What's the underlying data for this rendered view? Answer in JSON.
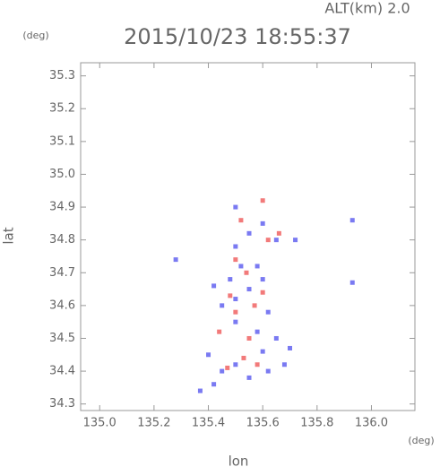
{
  "chart_data": {
    "type": "scatter",
    "title": "2015/10/23 18:55:37",
    "annotation": "ALT(km) 2.0",
    "x_label": "lon",
    "y_label": "lat",
    "x_unit": "(deg)",
    "y_unit": "(deg)",
    "xlim": [
      134.93,
      136.16
    ],
    "ylim": [
      34.28,
      35.34
    ],
    "xticks": [
      {
        "value": 135.0,
        "label": "135.0"
      },
      135.2,
      135.4,
      135.6,
      135.8,
      {
        "value": 136.0,
        "label": "136.0"
      }
    ],
    "yticks": [
      34.3,
      34.4,
      34.5,
      34.6,
      34.7,
      34.8,
      34.9,
      {
        "value": 35.0,
        "label": "35.0"
      },
      35.1,
      35.2,
      35.3
    ],
    "series": [
      {
        "color": "#7a7af2",
        "x": [
          135.37,
          135.42,
          135.45,
          135.5,
          135.55,
          135.62,
          135.68,
          135.6,
          135.65,
          135.58,
          135.5,
          135.45,
          135.5,
          135.55,
          135.6,
          135.48,
          135.42,
          135.52,
          135.58,
          135.5,
          135.55,
          135.6,
          135.65,
          135.72,
          135.5,
          135.93,
          135.28,
          135.93,
          135.62,
          135.7,
          135.4
        ],
        "y": [
          34.34,
          34.36,
          34.4,
          34.42,
          34.38,
          34.4,
          34.42,
          34.46,
          34.5,
          34.52,
          34.55,
          34.6,
          34.62,
          34.65,
          34.68,
          34.68,
          34.66,
          34.72,
          34.72,
          34.78,
          34.82,
          34.85,
          34.8,
          34.8,
          34.9,
          34.67,
          34.74,
          34.86,
          34.58,
          34.47,
          34.45
        ]
      },
      {
        "color": "#f27a7a",
        "x": [
          135.47,
          135.53,
          135.58,
          135.55,
          135.5,
          135.57,
          135.48,
          135.6,
          135.54,
          135.5,
          135.62,
          135.66,
          135.52,
          135.6,
          135.44
        ],
        "y": [
          34.41,
          34.44,
          34.42,
          34.5,
          34.58,
          34.6,
          34.63,
          34.64,
          34.7,
          34.74,
          34.8,
          34.82,
          34.86,
          34.92,
          34.52
        ]
      }
    ]
  }
}
